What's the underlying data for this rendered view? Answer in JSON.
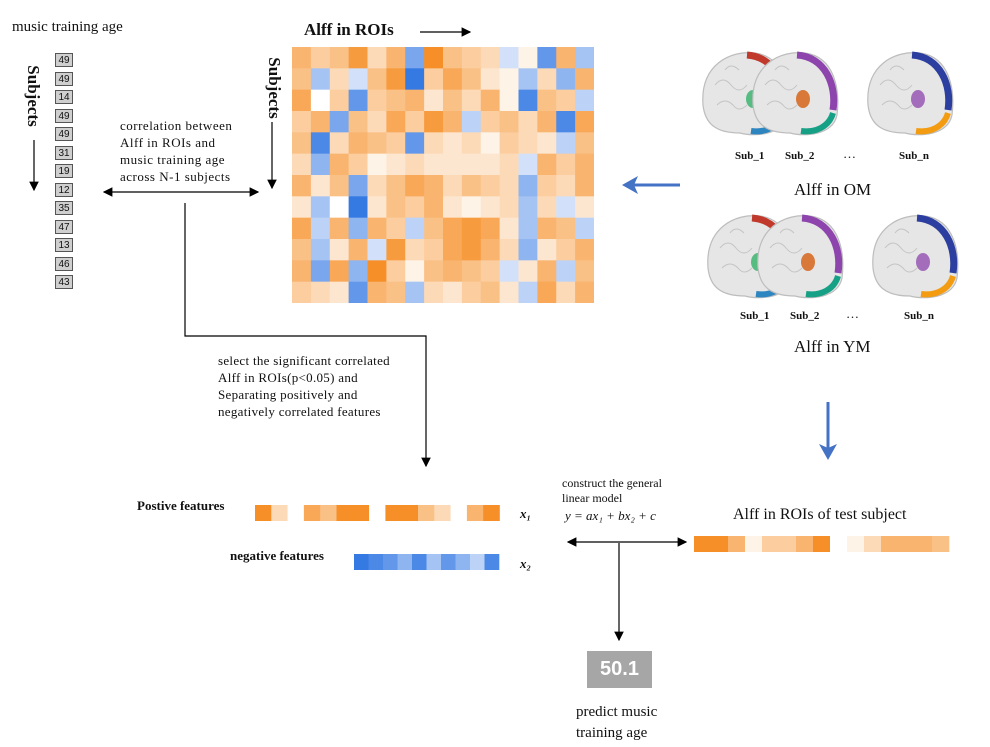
{
  "labels": {
    "music_training_age": "music training age",
    "subjects": "Subjects",
    "alff_in_rois": "Alff in ROIs",
    "correlation_text": "correlation between\nAlff in ROIs and\nmusic training age\nacross N-1 subjects",
    "select_text": "select the significant correlated\nAlff in ROIs(p<0.05) and\nSeparating positively and\nnegatively correlated features",
    "positive_features": "Postive features",
    "negative_features": "negative features",
    "x1": "x₁",
    "x2": "x₂",
    "glm_text": "construct the general\nlinear model",
    "glm_equation": "y = ax₁ + bx₂ + c",
    "test_subject": "Alff in ROIs of test subject",
    "alff_om": "Alff in OM",
    "alff_ym": "Alff in YM",
    "ellipsis": "…",
    "sub_1": "Sub_1",
    "sub_2": "Sub_2",
    "sub_n": "Sub_n",
    "prediction_value": "50.1",
    "predict_caption": "predict music\ntraining age"
  },
  "training_ages": [
    "49",
    "49",
    "14",
    "49",
    "49",
    "31",
    "19",
    "12",
    "35",
    "47",
    "13",
    "46",
    "43"
  ],
  "colors": {
    "orange": "#f5820f",
    "blue": "#1f6ae0",
    "arrow_blue": "#4472c4",
    "gray_box": "#a6a6a6"
  },
  "heatmap_values": [
    [
      0.6,
      0.4,
      0.5,
      0.8,
      0.3,
      0.6,
      -0.6,
      0.9,
      0.5,
      0.4,
      0.3,
      -0.2,
      0.1,
      -0.7,
      0.6,
      -0.4
    ],
    [
      0.5,
      -0.4,
      0.3,
      -0.2,
      0.5,
      0.8,
      -0.9,
      0.4,
      0.7,
      0.5,
      0.2,
      0.1,
      -0.4,
      0.3,
      -0.5,
      0.6
    ],
    [
      0.7,
      0.0,
      0.4,
      -0.7,
      0.4,
      0.5,
      0.6,
      0.2,
      0.5,
      0.3,
      0.6,
      0.1,
      -0.8,
      0.5,
      0.4,
      -0.3
    ],
    [
      0.4,
      0.6,
      -0.6,
      0.5,
      0.3,
      0.7,
      0.4,
      0.8,
      0.6,
      -0.3,
      0.4,
      0.5,
      0.3,
      0.6,
      -0.8,
      0.7
    ],
    [
      0.5,
      -0.8,
      0.3,
      0.6,
      0.5,
      0.4,
      -0.7,
      0.3,
      0.2,
      0.3,
      0.1,
      0.4,
      0.3,
      0.2,
      -0.3,
      0.5
    ],
    [
      0.3,
      -0.5,
      0.6,
      0.4,
      0.1,
      0.2,
      0.3,
      0.2,
      0.2,
      0.2,
      0.2,
      0.3,
      -0.2,
      0.6,
      0.4,
      0.6
    ],
    [
      0.6,
      0.2,
      0.5,
      -0.6,
      0.3,
      0.5,
      0.7,
      0.6,
      0.3,
      0.5,
      0.4,
      0.3,
      -0.5,
      0.4,
      0.3,
      0.6
    ],
    [
      0.2,
      -0.4,
      0.0,
      -0.9,
      0.2,
      0.5,
      0.4,
      0.6,
      0.2,
      0.1,
      0.2,
      0.3,
      -0.4,
      0.3,
      -0.2,
      0.2
    ],
    [
      0.7,
      -0.3,
      0.6,
      -0.5,
      0.6,
      0.4,
      -0.3,
      0.5,
      0.7,
      0.8,
      0.7,
      0.2,
      -0.4,
      0.6,
      0.5,
      -0.3
    ],
    [
      0.5,
      -0.4,
      0.2,
      0.6,
      -0.2,
      0.8,
      0.3,
      0.4,
      0.7,
      0.8,
      0.6,
      0.3,
      -0.5,
      0.2,
      0.4,
      0.6
    ],
    [
      0.6,
      -0.6,
      0.7,
      -0.5,
      0.9,
      0.4,
      0.1,
      0.5,
      0.6,
      0.5,
      0.4,
      -0.2,
      0.2,
      0.6,
      -0.3,
      0.5
    ],
    [
      0.4,
      0.3,
      0.2,
      -0.7,
      0.6,
      0.5,
      -0.4,
      0.3,
      0.2,
      0.4,
      0.5,
      0.2,
      -0.3,
      0.7,
      0.3,
      0.6
    ]
  ],
  "positive_feature_values": [
    0.9,
    0.3,
    0.0,
    0.7,
    0.5,
    0.9,
    0.9,
    0.0,
    0.9,
    0.9,
    0.5,
    0.3,
    0.0,
    0.6,
    0.9
  ],
  "negative_feature_values": [
    -0.9,
    -0.8,
    -0.7,
    -0.5,
    -0.8,
    -0.4,
    -0.7,
    -0.5,
    -0.3,
    -0.8
  ],
  "test_subject_values": [
    0.9,
    0.9,
    0.6,
    0.1,
    0.4,
    0.4,
    0.6,
    0.9,
    0.0,
    0.1,
    0.3,
    0.6,
    0.6,
    0.6,
    0.5
  ]
}
